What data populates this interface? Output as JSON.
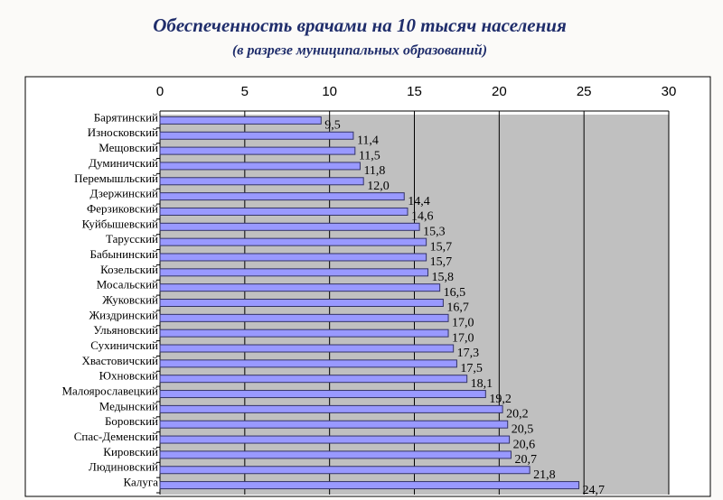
{
  "chart_data": {
    "type": "bar",
    "orientation": "horizontal",
    "title": "Обеспеченность врачами на 10 тысяч населения",
    "subtitle": "(в разрезе муниципальных образований)",
    "categories": [
      "Барятинский",
      "Износковский",
      "Мещовский",
      "Думиничский",
      "Перемышльский",
      "Дзержинский",
      "Ферзиковский",
      "Куйбышевский",
      "Тарусский",
      "Бабынинский",
      "Козельский",
      "Мосальский",
      "Жуковский",
      "Жиздринский",
      "Ульяновский",
      "Сухиничский",
      "Хвастовичский",
      "Юхновский",
      "Малоярославецкий",
      "Медынский",
      "Боровский",
      "Спас-Деменский",
      "Кировский",
      "Людиновский",
      "Калуга"
    ],
    "values": [
      9.5,
      11.4,
      11.5,
      11.8,
      12.0,
      14.4,
      14.6,
      15.3,
      15.7,
      15.7,
      15.8,
      16.5,
      16.7,
      17.0,
      17.0,
      17.3,
      17.5,
      18.1,
      19.2,
      20.2,
      20.5,
      20.6,
      20.7,
      21.8,
      24.7
    ],
    "value_labels": [
      "9,5",
      "11,4",
      "11,5",
      "11,8",
      "12,0",
      "14,4",
      "14,6",
      "15,3",
      "15,7",
      "15,7",
      "15,8",
      "16,5",
      "16,7",
      "17,0",
      "17,0",
      "17,3",
      "17,5",
      "18,1",
      "19,2",
      "20,2",
      "20,5",
      "20,6",
      "20,7",
      "21,8",
      "24,7"
    ],
    "color": "#9999ff",
    "xlim": [
      0,
      30
    ],
    "xticks": [
      0,
      5,
      10,
      15,
      20,
      25,
      30
    ],
    "grid": true
  }
}
